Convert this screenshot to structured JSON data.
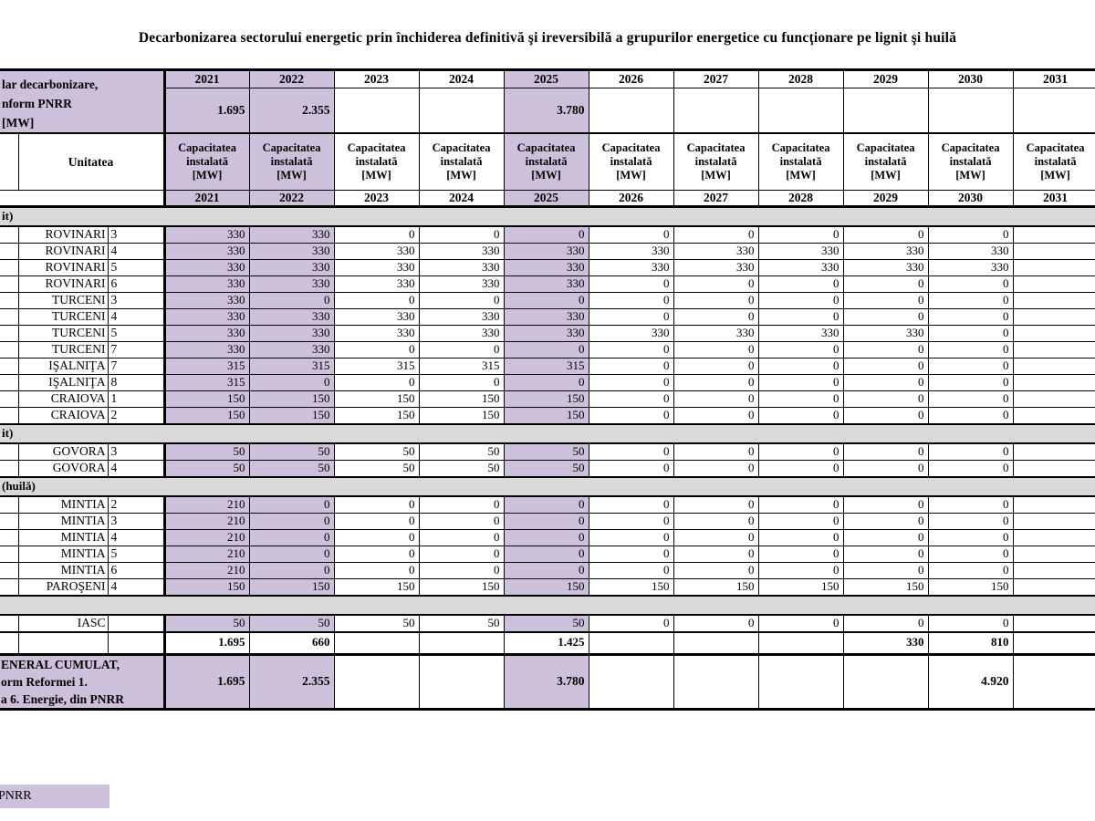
{
  "title": "Decarbonizarea sectorului energetic prin închiderea definitivă şi ireversibilă a grupurilor energetice cu funcţionare pe lignit şi huilă",
  "colors": {
    "highlight": "#CCC0DA",
    "section_band": "#D9D9D9",
    "border": "#000000"
  },
  "years": [
    "2021",
    "2022",
    "2023",
    "2024",
    "2025",
    "2026",
    "2027",
    "2028",
    "2029",
    "2030",
    "2031"
  ],
  "highlighted_years": [
    "2021",
    "2022",
    "2025"
  ],
  "header": {
    "left_cell_lines": [
      "lar decarbonizare,",
      "nform PNRR",
      "[MW]"
    ],
    "unit_label": "Unitatea",
    "capacity_lines": [
      "Capacitatea",
      "instalată",
      "[MW]"
    ],
    "pnrr_totals": [
      "1.695",
      "2.355",
      "",
      "",
      "3.780",
      "",
      "",
      "",
      "",
      "",
      ""
    ]
  },
  "sections": [
    {
      "label": "it)",
      "rows": [
        {
          "plant": "ROVINARI",
          "unit": "3",
          "values": [
            "330",
            "330",
            "0",
            "0",
            "0",
            "0",
            "0",
            "0",
            "0",
            "0",
            ""
          ]
        },
        {
          "plant": "ROVINARI",
          "unit": "4",
          "values": [
            "330",
            "330",
            "330",
            "330",
            "330",
            "330",
            "330",
            "330",
            "330",
            "330",
            ""
          ]
        },
        {
          "plant": "ROVINARI",
          "unit": "5",
          "values": [
            "330",
            "330",
            "330",
            "330",
            "330",
            "330",
            "330",
            "330",
            "330",
            "330",
            ""
          ]
        },
        {
          "plant": "ROVINARI",
          "unit": "6",
          "values": [
            "330",
            "330",
            "330",
            "330",
            "330",
            "0",
            "0",
            "0",
            "0",
            "0",
            ""
          ]
        },
        {
          "plant": "TURCENI",
          "unit": "3",
          "values": [
            "330",
            "0",
            "0",
            "0",
            "0",
            "0",
            "0",
            "0",
            "0",
            "0",
            ""
          ]
        },
        {
          "plant": "TURCENI",
          "unit": "4",
          "values": [
            "330",
            "330",
            "330",
            "330",
            "330",
            "0",
            "0",
            "0",
            "0",
            "0",
            ""
          ]
        },
        {
          "plant": "TURCENI",
          "unit": "5",
          "values": [
            "330",
            "330",
            "330",
            "330",
            "330",
            "330",
            "330",
            "330",
            "330",
            "0",
            ""
          ]
        },
        {
          "plant": "TURCENI",
          "unit": "7",
          "values": [
            "330",
            "330",
            "0",
            "0",
            "0",
            "0",
            "0",
            "0",
            "0",
            "0",
            ""
          ]
        },
        {
          "plant": "IŞALNIŢA",
          "unit": "7",
          "values": [
            "315",
            "315",
            "315",
            "315",
            "315",
            "0",
            "0",
            "0",
            "0",
            "0",
            ""
          ]
        },
        {
          "plant": "IŞALNIŢA",
          "unit": "8",
          "values": [
            "315",
            "0",
            "0",
            "0",
            "0",
            "0",
            "0",
            "0",
            "0",
            "0",
            ""
          ]
        },
        {
          "plant": "CRAIOVA",
          "unit": "1",
          "values": [
            "150",
            "150",
            "150",
            "150",
            "150",
            "0",
            "0",
            "0",
            "0",
            "0",
            ""
          ]
        },
        {
          "plant": "CRAIOVA",
          "unit": "2",
          "values": [
            "150",
            "150",
            "150",
            "150",
            "150",
            "0",
            "0",
            "0",
            "0",
            "0",
            ""
          ]
        }
      ]
    },
    {
      "label": "it)",
      "rows": [
        {
          "plant": "GOVORA",
          "unit": "3",
          "values": [
            "50",
            "50",
            "50",
            "50",
            "50",
            "0",
            "0",
            "0",
            "0",
            "0",
            ""
          ]
        },
        {
          "plant": "GOVORA",
          "unit": "4",
          "values": [
            "50",
            "50",
            "50",
            "50",
            "50",
            "0",
            "0",
            "0",
            "0",
            "0",
            ""
          ]
        }
      ]
    },
    {
      "label": "(huilă)",
      "rows": [
        {
          "plant": "MINTIA",
          "unit": "2",
          "values": [
            "210",
            "0",
            "0",
            "0",
            "0",
            "0",
            "0",
            "0",
            "0",
            "0",
            ""
          ]
        },
        {
          "plant": "MINTIA",
          "unit": "3",
          "values": [
            "210",
            "0",
            "0",
            "0",
            "0",
            "0",
            "0",
            "0",
            "0",
            "0",
            ""
          ]
        },
        {
          "plant": "MINTIA",
          "unit": "4",
          "values": [
            "210",
            "0",
            "0",
            "0",
            "0",
            "0",
            "0",
            "0",
            "0",
            "0",
            ""
          ]
        },
        {
          "plant": "MINTIA",
          "unit": "5",
          "values": [
            "210",
            "0",
            "0",
            "0",
            "0",
            "0",
            "0",
            "0",
            "0",
            "0",
            ""
          ]
        },
        {
          "plant": "MINTIA",
          "unit": "6",
          "values": [
            "210",
            "0",
            "0",
            "0",
            "0",
            "0",
            "0",
            "0",
            "0",
            "0",
            ""
          ]
        },
        {
          "plant": "PAROŞENI",
          "unit": "4",
          "values": [
            "150",
            "150",
            "150",
            "150",
            "150",
            "150",
            "150",
            "150",
            "150",
            "150",
            ""
          ]
        }
      ]
    },
    {
      "label": "",
      "rows": [
        {
          "plant": "IASC",
          "unit": "",
          "values": [
            "50",
            "50",
            "50",
            "50",
            "50",
            "0",
            "0",
            "0",
            "0",
            "0",
            ""
          ]
        }
      ]
    }
  ],
  "totals_row": {
    "values": [
      "1.695",
      "660",
      "",
      "",
      "1.425",
      "",
      "",
      "",
      "330",
      "810",
      ""
    ]
  },
  "general_row": {
    "label_lines": [
      "ENERAL CUMULAT,",
      "orm Reformei 1.",
      "a 6. Energie, din PNRR"
    ],
    "values": [
      "1.695",
      "2.355",
      "",
      "",
      "3.780",
      "",
      "",
      "",
      "",
      "4.920",
      ""
    ]
  },
  "legend": {
    "label": "PNRR"
  }
}
